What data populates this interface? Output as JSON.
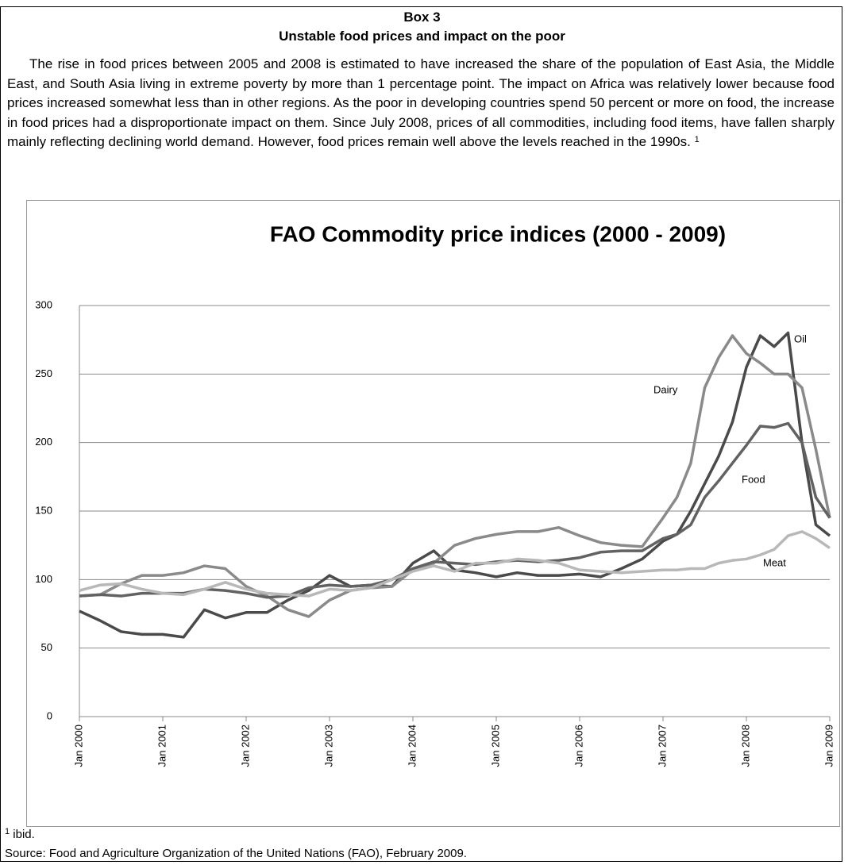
{
  "box": {
    "label": "Box 3",
    "title": "Unstable food prices and impact on the poor",
    "paragraph": "The rise in food prices between 2005 and 2008 is estimated to have increased the share of the population of East Asia, the Middle East, and South Asia living in extreme poverty by more than 1 percentage point. The impact on Africa was relatively lower because food prices increased somewhat less than in other regions. As the poor in developing countries spend 50 percent or more on food, the increase in food prices had a disproportionate impact on them. Since July 2008, prices of all commodities, including food items, have fallen sharply mainly reflecting declining world demand. However, food prices remain well above the levels reached in the 1990s.",
    "note_marker": "1"
  },
  "chart_data": {
    "type": "line",
    "title": "FAO Commodity price indices (2000 - 2009)",
    "x": [
      2000,
      2000.25,
      2000.5,
      2000.75,
      2001,
      2001.25,
      2001.5,
      2001.75,
      2002,
      2002.25,
      2002.5,
      2002.75,
      2003,
      2003.25,
      2003.5,
      2003.75,
      2004,
      2004.25,
      2004.5,
      2004.75,
      2005,
      2005.25,
      2005.5,
      2005.75,
      2006,
      2006.25,
      2006.5,
      2006.75,
      2007,
      2007.167,
      2007.333,
      2007.5,
      2007.667,
      2007.833,
      2008,
      2008.167,
      2008.333,
      2008.5,
      2008.667,
      2008.833,
      2009
    ],
    "series": [
      {
        "name": "Oil",
        "color": "#4a4a4a",
        "values": [
          77,
          70,
          62,
          60,
          60,
          58,
          78,
          72,
          76,
          76,
          85,
          92,
          103,
          95,
          96,
          95,
          112,
          121,
          107,
          105,
          102,
          105,
          103,
          103,
          104,
          102,
          108,
          115,
          128,
          133,
          150,
          170,
          190,
          215,
          255,
          278,
          270,
          280,
          200,
          140,
          132
        ]
      },
      {
        "name": "Dairy",
        "color": "#8a8a8a",
        "values": [
          88,
          89,
          97,
          103,
          103,
          105,
          110,
          108,
          95,
          88,
          78,
          73,
          85,
          92,
          94,
          95,
          107,
          112,
          125,
          130,
          133,
          135,
          135,
          138,
          132,
          127,
          125,
          124,
          145,
          160,
          185,
          240,
          262,
          278,
          265,
          258,
          250,
          250,
          240,
          195,
          145
        ]
      },
      {
        "name": "Food",
        "color": "#626262",
        "values": [
          88,
          89,
          88,
          90,
          90,
          90,
          93,
          92,
          90,
          87,
          88,
          94,
          96,
          95,
          96,
          100,
          108,
          113,
          112,
          111,
          113,
          114,
          113,
          114,
          116,
          120,
          121,
          121,
          130,
          133,
          140,
          160,
          172,
          185,
          198,
          212,
          211,
          214,
          200,
          160,
          145
        ]
      },
      {
        "name": "Meat",
        "color": "#b8b8b8",
        "values": [
          92,
          96,
          97,
          93,
          90,
          89,
          93,
          98,
          93,
          90,
          89,
          88,
          93,
          92,
          94,
          100,
          106,
          110,
          106,
          112,
          112,
          115,
          114,
          112,
          107,
          106,
          105,
          106,
          107,
          107,
          108,
          108,
          112,
          114,
          115,
          118,
          122,
          132,
          135,
          130,
          123
        ]
      }
    ],
    "xlim": [
      2000,
      2009
    ],
    "xticks": [
      {
        "value": 2000,
        "label": "Jan 2000"
      },
      {
        "value": 2001,
        "label": "Jan 2001"
      },
      {
        "value": 2002,
        "label": "Jan 2002"
      },
      {
        "value": 2003,
        "label": "Jan 2003"
      },
      {
        "value": 2004,
        "label": "Jan 2004"
      },
      {
        "value": 2005,
        "label": "Jan 2005"
      },
      {
        "value": 2006,
        "label": "Jan 2006"
      },
      {
        "value": 2007,
        "label": "Jan 2007"
      },
      {
        "value": 2008,
        "label": "Jan 2008"
      },
      {
        "value": 2009,
        "label": "Jan 2009"
      }
    ],
    "ylim": [
      0,
      300
    ],
    "yticks": [
      0,
      50,
      100,
      150,
      200,
      250,
      300
    ],
    "grid": true
  },
  "footnote": {
    "marker": "1",
    "text": "ibid."
  },
  "source": "Source: Food and Agriculture Organization of the United Nations (FAO), February 2009."
}
